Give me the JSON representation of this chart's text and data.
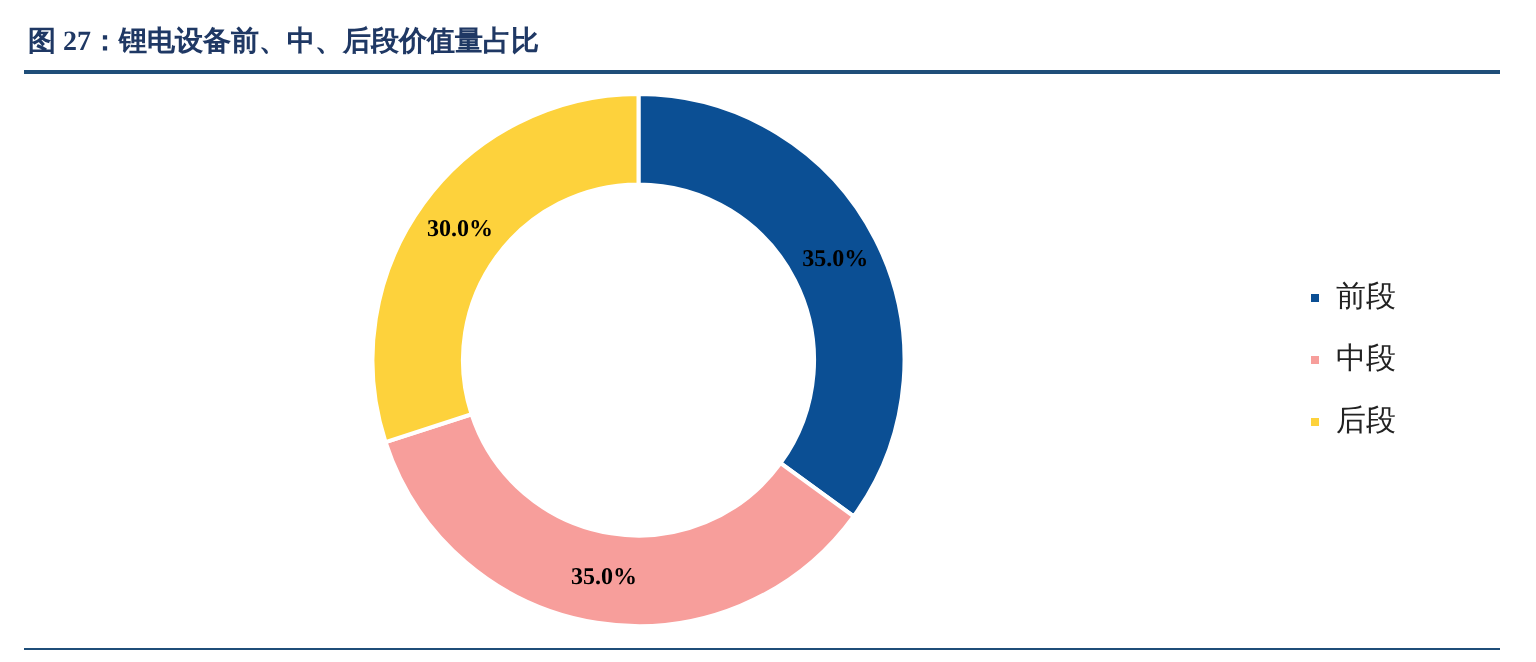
{
  "chart_data": {
    "type": "donut",
    "title": "图 27：锂电设备前、中、后段价值量占比",
    "categories": [
      "前段",
      "中段",
      "后段"
    ],
    "values": [
      35,
      35,
      30
    ],
    "colors": [
      "#0b4f94",
      "#f79e9b",
      "#fdd23c"
    ],
    "value_labels": [
      "35.0%",
      "35.0%",
      "30.0%"
    ],
    "legend": "right"
  }
}
